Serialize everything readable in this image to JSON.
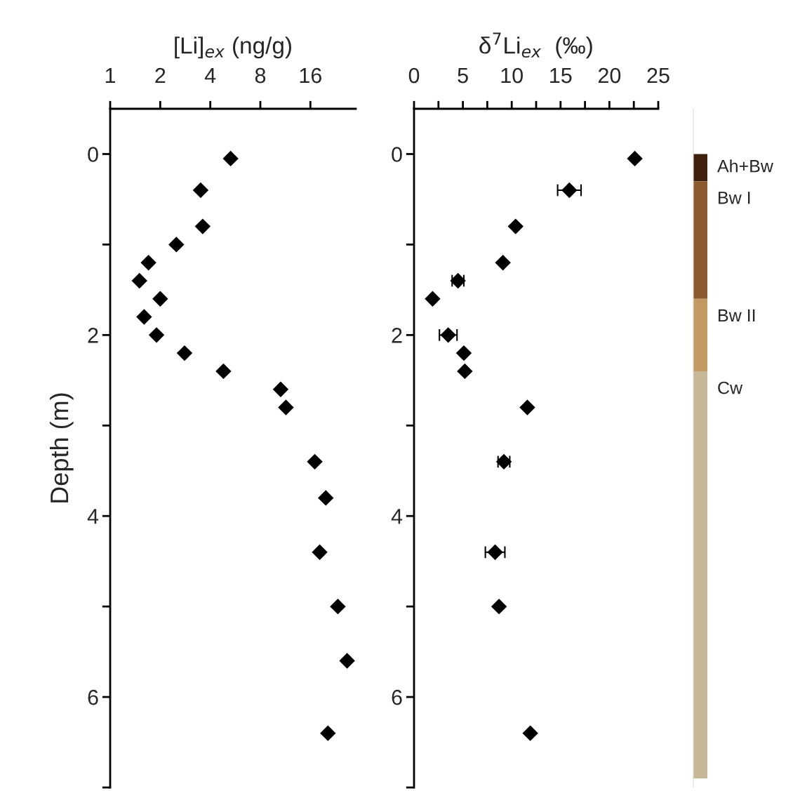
{
  "chart_data": [
    {
      "type": "scatter",
      "xlabel": "[Li]$_{ex}$ (ng/g)",
      "ylabel": "Depth (m)",
      "log": "x",
      "marker": "diamond",
      "grid": false,
      "xlim": [
        1,
        30
      ],
      "xticks": [
        1,
        2,
        4,
        8,
        16
      ],
      "ylim": [
        7,
        -0.5
      ],
      "yticks": [
        0,
        {
          "value": 1,
          "label": null
        },
        2,
        {
          "value": 3,
          "label": null
        },
        4,
        {
          "value": 5,
          "label": null
        },
        6,
        {
          "value": 7,
          "label": null
        }
      ],
      "series": [
        {
          "color": "#000000",
          "x": [
            5.3,
            3.5,
            3.6,
            2.5,
            1.7,
            1.5,
            2.0,
            1.6,
            1.9,
            2.8,
            4.8,
            10.6,
            11.4,
            17,
            19.8,
            18.2,
            23.4,
            26.6,
            20.4
          ],
          "values": [
            0.05,
            0.4,
            0.8,
            1.0,
            1.2,
            1.4,
            1.6,
            1.8,
            2.0,
            2.2,
            2.4,
            2.6,
            2.8,
            3.4,
            3.8,
            4.4,
            5.0,
            5.6,
            6.4
          ]
        }
      ]
    },
    {
      "type": "scatter",
      "xlabel": "δ$^{7}$Li$_{ex}$  (‰)",
      "marker": "diamond",
      "grid": false,
      "xlim": [
        0,
        25
      ],
      "xticks": [
        0,
        {
          "value": 2.5,
          "label": null
        },
        5,
        {
          "value": 7.5,
          "label": null
        },
        10,
        {
          "value": 12.5,
          "label": null
        },
        15,
        {
          "value": 17.5,
          "label": null
        },
        20,
        {
          "value": 22.5,
          "label": null
        },
        25
      ],
      "ylim": [
        7,
        -0.5
      ],
      "yticks": [
        0,
        {
          "value": 1,
          "label": null
        },
        2,
        {
          "value": 3,
          "label": null
        },
        4,
        {
          "value": 5,
          "label": null
        },
        6,
        {
          "value": 7,
          "label": null
        }
      ],
      "series": [
        {
          "color": "#000000",
          "x": [
            22.6,
            15.9,
            10.4,
            9.1,
            4.5,
            1.9,
            3.5,
            5.1,
            5.2,
            11.6,
            9.2,
            8.3,
            8.7,
            11.9
          ],
          "values": [
            0.05,
            0.4,
            0.8,
            1.2,
            1.4,
            1.6,
            2.0,
            2.2,
            2.4,
            2.8,
            3.4,
            4.4,
            5.0,
            6.4
          ],
          "xerrors": [
            null,
            1.2,
            null,
            null,
            0.6,
            null,
            0.9,
            null,
            null,
            null,
            0.6,
            1.0,
            null,
            null
          ]
        }
      ]
    },
    {
      "type": "bar",
      "stacked": true,
      "categories": [
        null
      ],
      "ylim": [
        7,
        -0.5
      ],
      "series": [
        {
          "name": "Ah+Bw",
          "color": "#40210f",
          "values": [
            0.3
          ]
        },
        {
          "name": "Bw I",
          "color": "#8b5a2f",
          "values": [
            1.3
          ]
        },
        {
          "name": "Bw II",
          "color": "#c39a62",
          "values": [
            0.8
          ]
        },
        {
          "name": "Cw",
          "color": "#c6b897",
          "values": [
            4.5
          ]
        }
      ]
    }
  ]
}
